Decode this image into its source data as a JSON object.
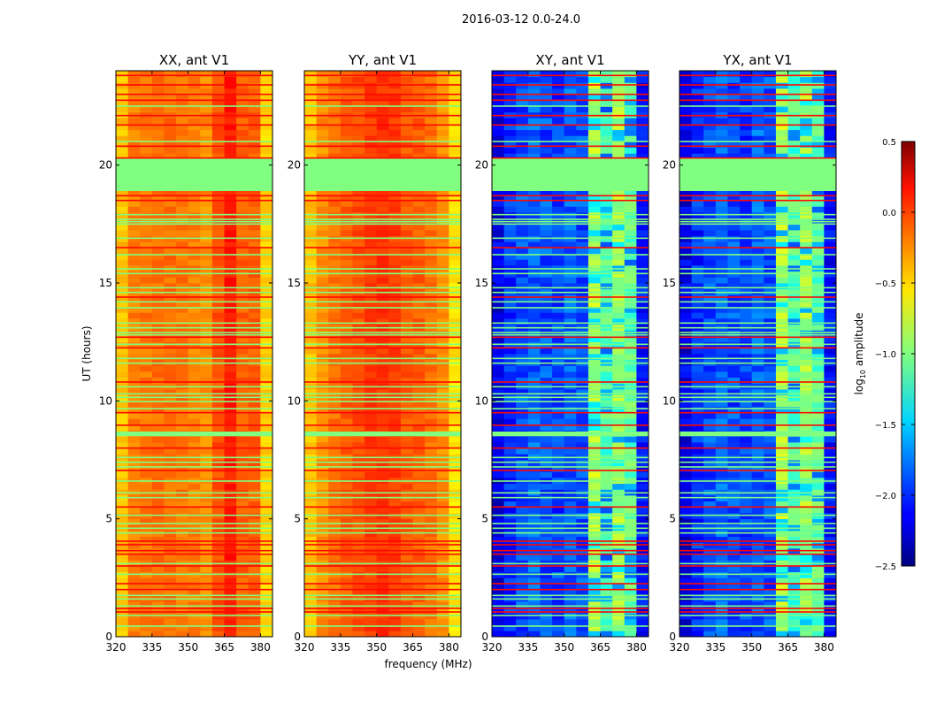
{
  "figure_title": "2016-03-12 0.0-24.0",
  "chart_data": {
    "type": "heatmap",
    "shared": {
      "xlabel": "frequency (MHz)",
      "ylabel": "UT (hours)",
      "xlim": [
        320,
        385
      ],
      "ylim": [
        0,
        24
      ],
      "xticks": [
        320,
        335,
        350,
        365,
        380
      ],
      "yticks": [
        0,
        5,
        10,
        15,
        20
      ],
      "colormap": "jet",
      "freq_segments_mhz": [
        320,
        325,
        330,
        335,
        340,
        345,
        350,
        355,
        360,
        365,
        370,
        375,
        380
      ],
      "flagged_band_hours": [
        [
          18.9,
          20.3
        ],
        [
          8.5,
          8.7
        ]
      ],
      "flagged_row_hours": [
        22.5,
        21.0,
        17.9,
        17.7,
        17.6,
        17.5,
        16.9,
        16.2,
        15.6,
        15.4,
        14.8,
        14.6,
        14.2,
        13.95,
        13.3,
        13.1,
        12.9,
        12.8,
        12.4,
        11.8,
        11.6,
        10.6,
        10.3,
        10.15,
        9.97,
        9.67,
        7.6,
        7.4,
        7.2,
        6.6,
        6.1,
        5.9,
        5.15,
        4.8,
        4.6,
        4.4,
        3.1,
        2.65,
        1.75,
        1.6,
        1.3,
        0.9,
        0.45
      ],
      "rfi_row_hours": [
        23.8,
        23.4,
        23.0,
        22.75,
        22.1,
        21.7,
        20.8,
        20.3,
        18.7,
        18.5,
        16.5,
        14.4,
        12.7,
        12.25,
        10.8,
        9.5,
        8.97,
        8.0,
        7.05,
        5.5,
        4.05,
        3.9,
        3.65,
        3.5,
        3.0,
        2.25,
        2.0,
        1.2,
        1.05
      ],
      "flag_value": -1.0,
      "rfi_value": 0.1
    },
    "panels": [
      {
        "title": "XX, ant V1",
        "mean_log_amplitude": [
          -0.45,
          -0.25,
          -0.22,
          -0.2,
          -0.2,
          -0.22,
          -0.25,
          -0.3,
          -0.1,
          0.05,
          -0.15,
          -0.15,
          -0.5
        ]
      },
      {
        "title": "YY, ant V1",
        "mean_log_amplitude": [
          -0.45,
          -0.3,
          -0.2,
          -0.15,
          -0.1,
          -0.05,
          -0.02,
          -0.05,
          -0.12,
          -0.15,
          -0.2,
          -0.3,
          -0.55
        ]
      },
      {
        "title": "XY, ant V1",
        "mean_log_amplitude": [
          -2.2,
          -2.0,
          -1.9,
          -1.85,
          -1.9,
          -1.95,
          -1.85,
          -1.9,
          -0.85,
          -1.15,
          -0.9,
          -1.1,
          -2.1
        ]
      },
      {
        "title": "YX, ant V1",
        "mean_log_amplitude": [
          -2.2,
          -2.0,
          -1.9,
          -1.85,
          -1.9,
          -1.95,
          -1.85,
          -1.9,
          -0.85,
          -1.15,
          -0.9,
          -1.1,
          -2.1
        ]
      }
    ],
    "colorbar": {
      "label": "log",
      "label_subscript": "10",
      "label_suffix": " amplitude",
      "range": [
        -2.5,
        0.5
      ],
      "ticks": [
        "0.5",
        "0.0",
        "−0.5",
        "−1.0",
        "−1.5",
        "−2.0",
        "−2.5"
      ],
      "tick_values": [
        0.5,
        0.0,
        -0.5,
        -1.0,
        -1.5,
        -2.0,
        -2.5
      ]
    }
  }
}
